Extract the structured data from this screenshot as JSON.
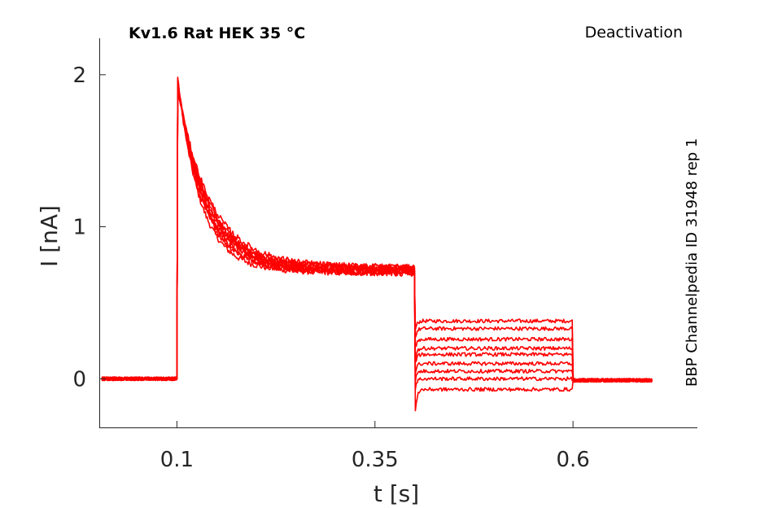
{
  "chart_data": {
    "type": "line",
    "title": "Kv1.6  Rat  HEK  35 °C",
    "protocol": "Deactivation",
    "side_label": "BBP Channelpedia ID 31948 rep 1",
    "xlabel": "t [s]",
    "ylabel": "I [nA]",
    "xlim": [
      0.002,
      0.757
    ],
    "ylim": [
      -0.32,
      2.24
    ],
    "xticks": [
      0.1,
      0.35,
      0.6
    ],
    "xtick_labels": [
      "0.1",
      "0.35",
      "0.6"
    ],
    "yticks": [
      0,
      1,
      2
    ],
    "ytick_labels": [
      "0",
      "1",
      "2"
    ],
    "grid": false,
    "legend": "none",
    "color": "#ff0000",
    "series_count": 9,
    "trace_model": {
      "baseline_start": 0.005,
      "step_on": 0.1,
      "peak": 1.97,
      "plateau_at_step_end": 0.71,
      "step_off": 0.4,
      "tail_levels": [
        0.38,
        0.33,
        0.26,
        0.2,
        0.16,
        0.1,
        0.05,
        0.0,
        -0.07
      ],
      "tail_end": 0.6,
      "trace_end": 0.7
    }
  }
}
